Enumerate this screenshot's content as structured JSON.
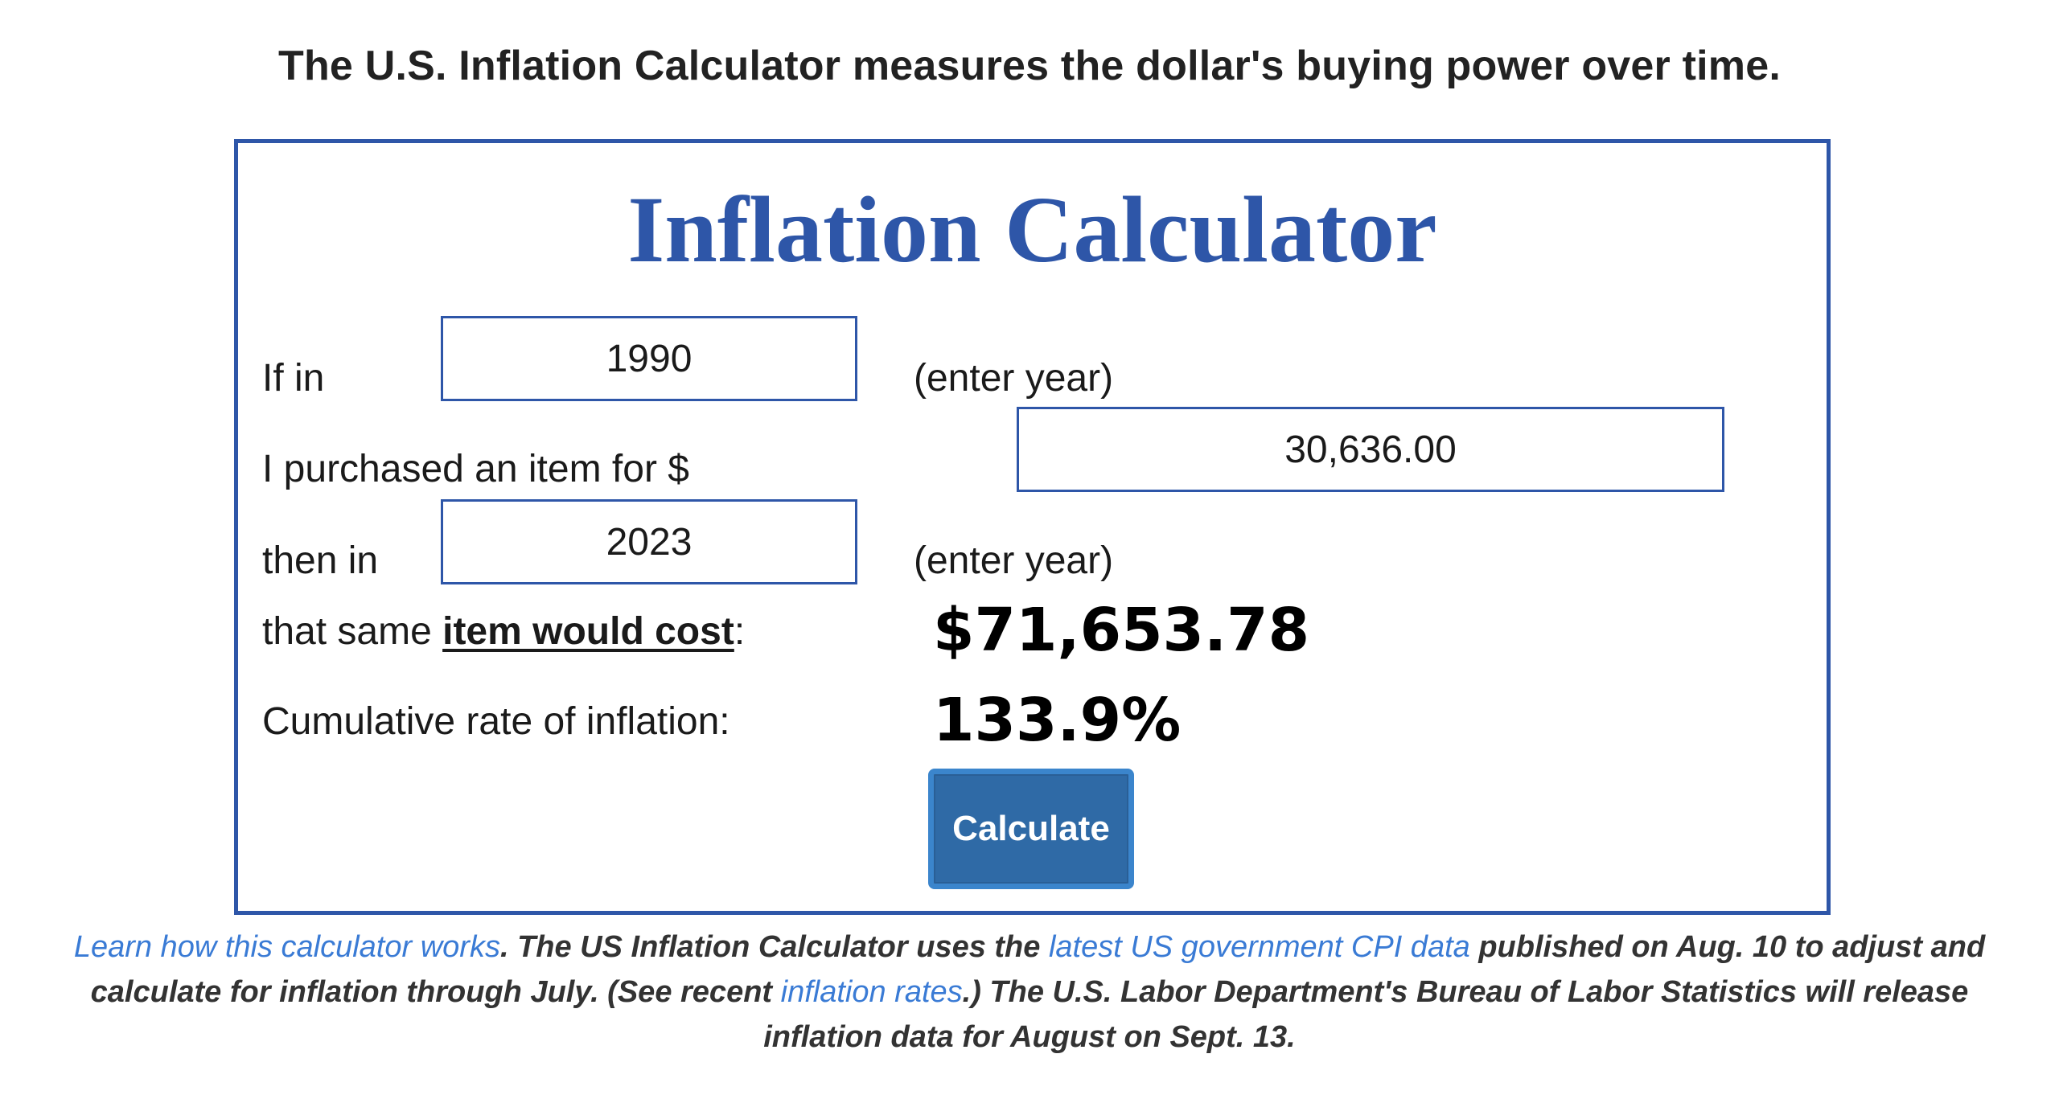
{
  "intro": "The U.S. Inflation Calculator measures the dollar's buying power over time.",
  "calculator": {
    "title": "Inflation Calculator",
    "start_label": "If in",
    "start_year": "1990",
    "year_hint": "(enter year)",
    "amount_label": "I purchased an item for $",
    "amount": "30,636.00",
    "end_label": "then in",
    "end_year": "2023",
    "cost_prefix": "that same ",
    "cost_link": "item would cost",
    "cost_suffix": ":",
    "cost_value": "$71,653.78",
    "rate_label": "Cumulative rate of inflation:",
    "rate_value": "133.9%",
    "button_label": "Calculate"
  },
  "footnote": {
    "link1": "Learn how this calculator works",
    "text1": ". The US Inflation Calculator uses the ",
    "link2": "latest US government CPI data",
    "text2": " published on Aug. 10 to adjust and calculate for inflation through July. (See recent ",
    "link3": "inflation rates",
    "text3": ".) The U.S. Labor Department's Bureau of Labor Statistics will release inflation data for August on Sept. 13."
  },
  "colors": {
    "accent": "#2e56a8",
    "button": "#2f6aa6",
    "link": "#3a7bd5"
  }
}
